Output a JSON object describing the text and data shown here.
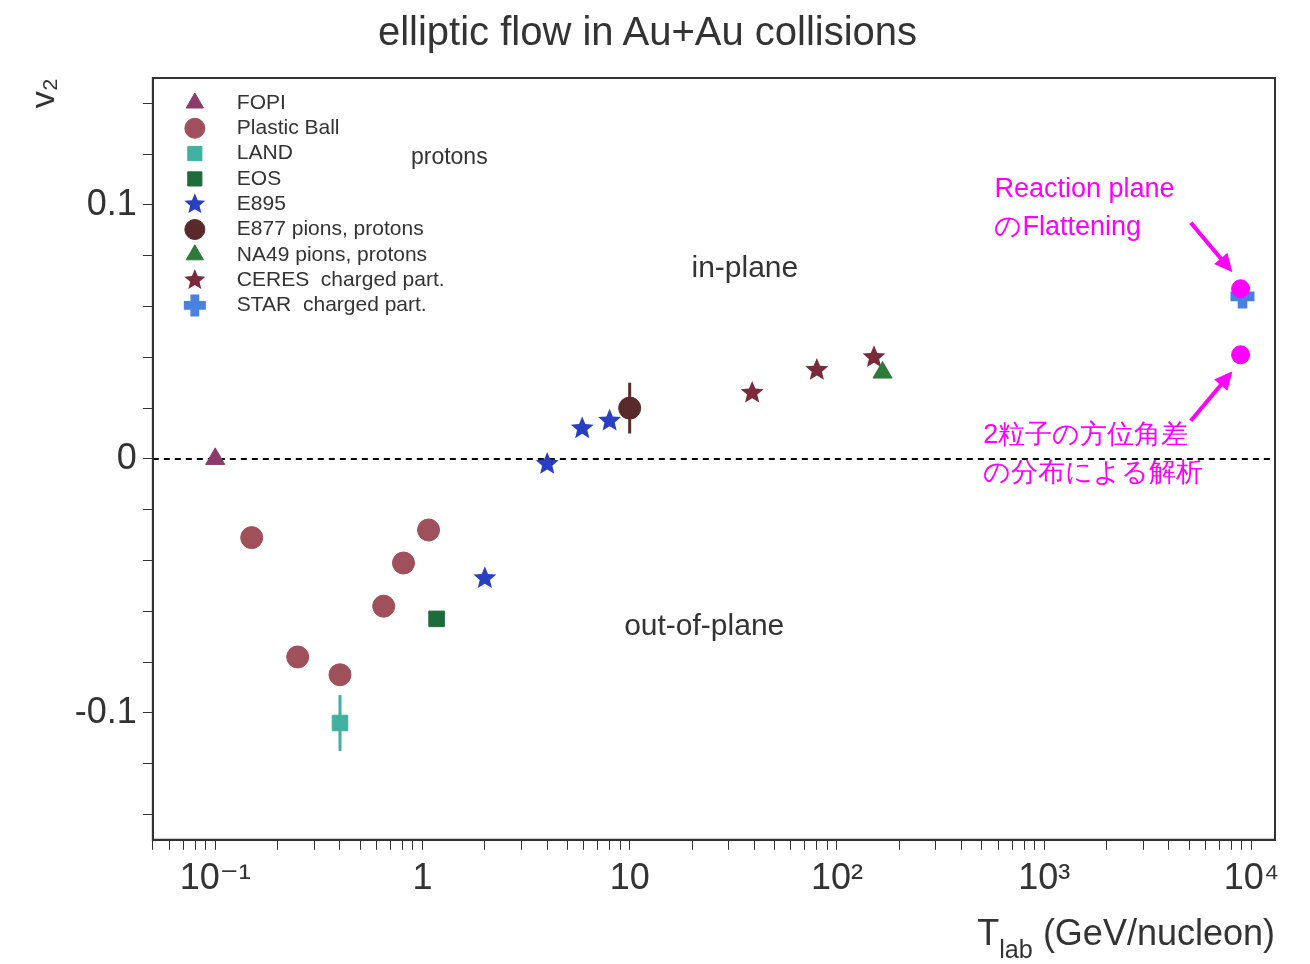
{
  "chart_data": {
    "type": "scatter",
    "title": "elliptic flow in Au+Au collisions",
    "xlabel": "T$_{lab}$ (GeV/nucleon)",
    "ylabel": "v₂",
    "log": "x",
    "grid": false,
    "legend": "top left",
    "xlim": [
      0.05,
      13000
    ],
    "xticks": [
      {
        "value": 0.05,
        "label": null
      },
      {
        "value": 0.06,
        "label": null
      },
      {
        "value": 0.07,
        "label": null
      },
      {
        "value": 0.08,
        "label": null
      },
      {
        "value": 0.09,
        "label": null
      },
      {
        "value": 0.1,
        "label": "10⁻¹"
      },
      {
        "value": 0.2,
        "label": null
      },
      {
        "value": 0.3,
        "label": null
      },
      {
        "value": 0.4,
        "label": null
      },
      {
        "value": 0.5,
        "label": null
      },
      {
        "value": 0.6,
        "label": null
      },
      {
        "value": 0.7,
        "label": null
      },
      {
        "value": 0.8,
        "label": null
      },
      {
        "value": 0.9,
        "label": null
      },
      {
        "value": 1,
        "label": "1"
      },
      {
        "value": 2,
        "label": null
      },
      {
        "value": 3,
        "label": null
      },
      {
        "value": 4,
        "label": null
      },
      {
        "value": 5,
        "label": null
      },
      {
        "value": 6,
        "label": null
      },
      {
        "value": 7,
        "label": null
      },
      {
        "value": 8,
        "label": null
      },
      {
        "value": 9,
        "label": null
      },
      {
        "value": 10,
        "label": "10"
      },
      {
        "value": 20,
        "label": null
      },
      {
        "value": 30,
        "label": null
      },
      {
        "value": 40,
        "label": null
      },
      {
        "value": 50,
        "label": null
      },
      {
        "value": 60,
        "label": null
      },
      {
        "value": 70,
        "label": null
      },
      {
        "value": 80,
        "label": null
      },
      {
        "value": 90,
        "label": null
      },
      {
        "value": 100,
        "label": "10²"
      },
      {
        "value": 200,
        "label": null
      },
      {
        "value": 300,
        "label": null
      },
      {
        "value": 400,
        "label": null
      },
      {
        "value": 500,
        "label": null
      },
      {
        "value": 600,
        "label": null
      },
      {
        "value": 700,
        "label": null
      },
      {
        "value": 800,
        "label": null
      },
      {
        "value": 900,
        "label": null
      },
      {
        "value": 1000,
        "label": "10³"
      },
      {
        "value": 2000,
        "label": null
      },
      {
        "value": 3000,
        "label": null
      },
      {
        "value": 4000,
        "label": null
      },
      {
        "value": 5000,
        "label": null
      },
      {
        "value": 6000,
        "label": null
      },
      {
        "value": 7000,
        "label": null
      },
      {
        "value": 8000,
        "label": null
      },
      {
        "value": 9000,
        "label": null
      },
      {
        "value": 10000,
        "label": "10⁴"
      }
    ],
    "ylim": [
      -0.15,
      0.15
    ],
    "yticks": [
      {
        "value": -0.14,
        "label": null
      },
      {
        "value": -0.12,
        "label": null
      },
      {
        "value": -0.1,
        "label": "-0.1"
      },
      {
        "value": -0.08,
        "label": null
      },
      {
        "value": -0.06,
        "label": null
      },
      {
        "value": -0.04,
        "label": null
      },
      {
        "value": -0.02,
        "label": null
      },
      0,
      {
        "value": 0.02,
        "label": null
      },
      {
        "value": 0.04,
        "label": null
      },
      {
        "value": 0.06,
        "label": null
      },
      {
        "value": 0.08,
        "label": null
      },
      {
        "value": 0.1,
        "label": "0.1"
      },
      {
        "value": 0.12,
        "label": null
      },
      {
        "value": 0.14,
        "label": null
      }
    ],
    "ref_lines": [
      {
        "axis": "y",
        "value": 0,
        "line_style": "dashed",
        "color": "#000000"
      }
    ],
    "series": [
      {
        "name": "FOPI",
        "color": "#8b3a6b",
        "marker": "triangle",
        "x": [
          0.1
        ],
        "values": [
          0
        ]
      },
      {
        "name": "Plastic Ball",
        "color": "#a0505a",
        "marker": "circle",
        "x": [
          0.15,
          0.25,
          0.4,
          0.65,
          0.81,
          1.07
        ],
        "values": [
          -0.031,
          -0.078,
          -0.085,
          -0.058,
          -0.041,
          -0.028
        ]
      },
      {
        "name": "LAND",
        "color": "#40b0a0",
        "marker": "square",
        "x": [
          0.4
        ],
        "values": [
          -0.104
        ],
        "errors": [
          0.011
        ]
      },
      {
        "name": "EOS",
        "color": "#1e6b3a",
        "marker": "square",
        "x": [
          1.17
        ],
        "values": [
          -0.063
        ]
      },
      {
        "name": "E895",
        "color": "#2a3fc0",
        "marker": "star",
        "x": [
          2,
          4,
          5.9,
          8
        ],
        "values": [
          -0.047,
          -0.002,
          0.012,
          0.015
        ]
      },
      {
        "name": "E877 pions, protons",
        "color": "#5a2a2a",
        "marker": "circle",
        "x": [
          10
        ],
        "values": [
          0.02
        ],
        "errors": [
          0.01
        ]
      },
      {
        "name": "NA49 pions, protons",
        "color": "#2e7a3a",
        "marker": "triangle",
        "x": [
          166
        ],
        "values": [
          0.034
        ]
      },
      {
        "name": "CERES  charged part.",
        "color": "#7a2a3a",
        "marker": "star",
        "x": [
          39,
          80,
          151
        ],
        "values": [
          0.026,
          0.035,
          0.04
        ]
      },
      {
        "name": "STAR  charged part.",
        "color": "#4a80e0",
        "marker": "cross",
        "x": [
          9060
        ],
        "values": [
          0.064
        ]
      },
      {
        "color": "#ff00ff",
        "marker": "circle",
        "x": [
          8870,
          8870
        ],
        "values": [
          0.067,
          0.041
        ]
      }
    ],
    "annotations": [
      "protons",
      "in-plane",
      "out-of-plane",
      "Reaction plane のFlattening",
      "2粒子の方位角差の分布による解析"
    ]
  }
}
